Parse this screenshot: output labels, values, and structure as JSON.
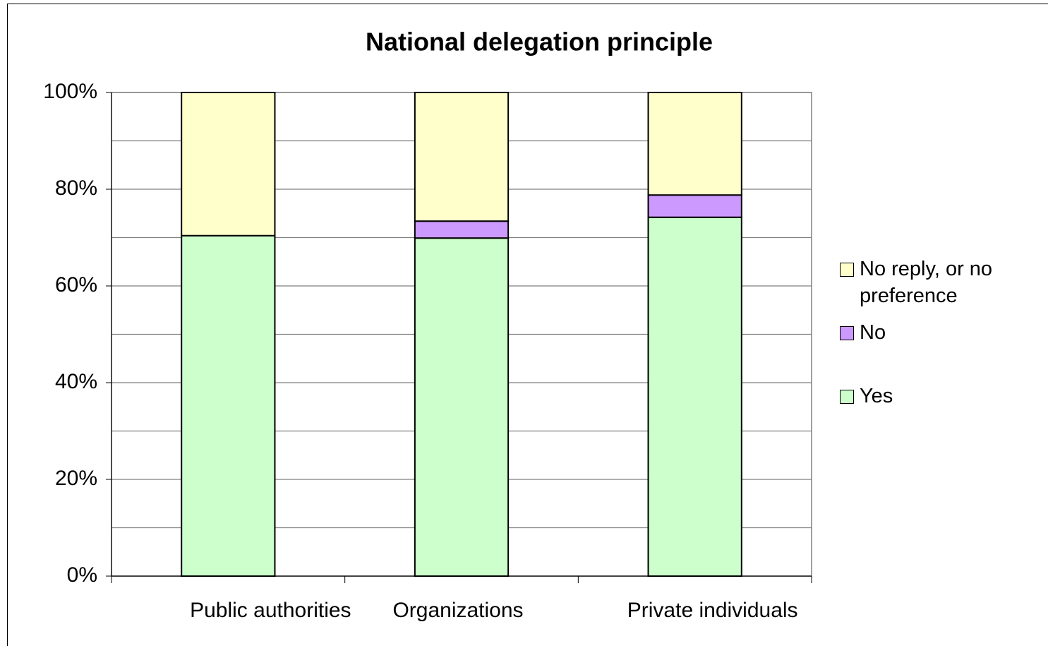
{
  "chart_data": {
    "type": "stacked_bar",
    "title": "National delegation principle",
    "categories": [
      "Public authorities",
      "Organizations",
      "Private individuals"
    ],
    "series": [
      {
        "name": "Yes",
        "color": "#ccffcc",
        "values": [
          70.4,
          69.9,
          74.2
        ]
      },
      {
        "name": "No",
        "color": "#cc99ff",
        "values": [
          0,
          3.5,
          4.6
        ]
      },
      {
        "name": "No reply, or no preference",
        "color": "#ffffcc",
        "values": [
          29.6,
          26.6,
          21.2
        ]
      }
    ],
    "ylim": [
      0,
      100
    ],
    "yticks": [
      {
        "value": 0,
        "label": "0%"
      },
      {
        "value": 20,
        "label": "20%"
      },
      {
        "value": 40,
        "label": "40%"
      },
      {
        "value": 60,
        "label": "60%"
      },
      {
        "value": 80,
        "label": "80%"
      },
      {
        "value": 100,
        "label": "100%"
      }
    ],
    "minor_yticks": [
      10,
      30,
      50,
      70,
      90
    ],
    "grid": true,
    "legend": "right"
  }
}
